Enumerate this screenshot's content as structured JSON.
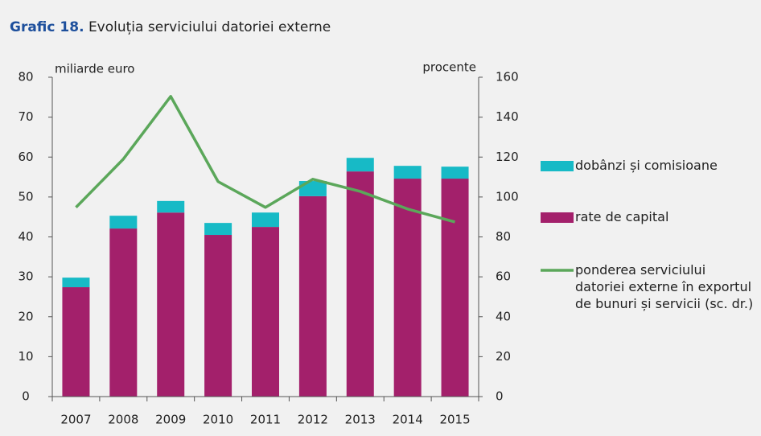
{
  "chart_data": {
    "type": "bar",
    "title_prefix": "Grafic 18.",
    "title": "Evoluția serviciului datoriei externe",
    "y_label": "miliarde euro",
    "y2_label": "procente",
    "categories": [
      "2007",
      "2008",
      "2009",
      "2010",
      "2011",
      "2012",
      "2013",
      "2014",
      "2015"
    ],
    "stacked": true,
    "series": [
      {
        "name": "rate de capital",
        "color": "#a3206b",
        "values": [
          27.4,
          42.1,
          46.1,
          40.5,
          42.5,
          50.2,
          56.4,
          54.6,
          54.6
        ]
      },
      {
        "name": "dobânzi și comisioane",
        "color": "#17bac6",
        "values": [
          2.4,
          3.2,
          2.9,
          3.0,
          3.6,
          3.8,
          3.4,
          3.2,
          3.0
        ]
      },
      {
        "name": "ponderea serviciului datoriei externe în exportul de bunuri și servicii (sc. dr.)",
        "color": "#5ba75a",
        "type": "line",
        "axis": "y2",
        "values": [
          94.8,
          119,
          150.4,
          107.7,
          94.8,
          108.9,
          102.8,
          94,
          87.5
        ]
      }
    ],
    "ylim": [
      0,
      80
    ],
    "yticks": [
      0,
      10,
      20,
      30,
      40,
      50,
      60,
      70,
      80
    ],
    "y2lim": [
      0,
      160
    ],
    "y2ticks": [
      0,
      20,
      40,
      60,
      80,
      100,
      120,
      140,
      160
    ]
  }
}
